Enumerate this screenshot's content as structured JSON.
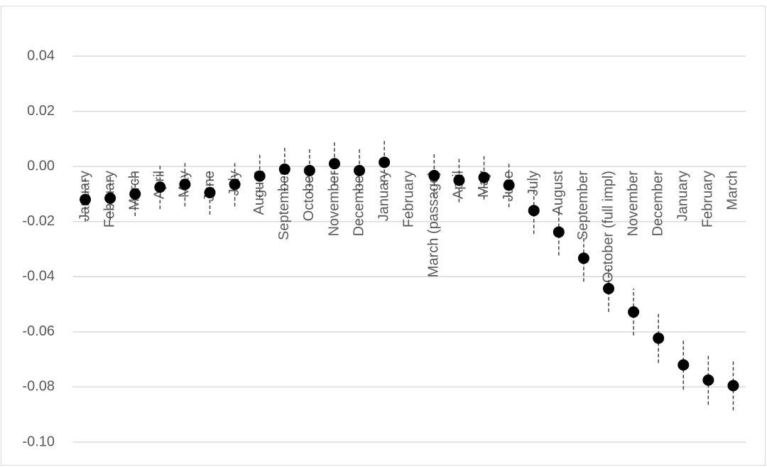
{
  "chart_data": {
    "type": "scatter",
    "categories": [
      "January",
      "February",
      "March",
      "April",
      "May",
      "June",
      "July",
      "August",
      "September",
      "October",
      "November",
      "December",
      "January",
      "February",
      "March (passage)",
      "April",
      "May",
      "June",
      "July",
      "August",
      "September",
      "October (full impl)",
      "November",
      "December",
      "January",
      "February",
      "March"
    ],
    "values": [
      -0.012,
      -0.0115,
      -0.01,
      -0.0075,
      -0.0065,
      -0.0095,
      -0.0065,
      -0.0035,
      -0.001,
      -0.0015,
      0.001,
      -0.0015,
      0.0015,
      null,
      -0.0033,
      -0.005,
      -0.004,
      -0.0068,
      -0.016,
      -0.0238,
      -0.0333,
      -0.0443,
      -0.0528,
      -0.0623,
      -0.072,
      -0.0775,
      -0.0795
    ],
    "errors": [
      0.008,
      0.008,
      0.008,
      0.008,
      0.008,
      0.008,
      0.008,
      0.008,
      0.008,
      0.008,
      0.008,
      0.008,
      0.008,
      null,
      0.008,
      0.008,
      0.008,
      0.008,
      0.0085,
      0.0085,
      0.0085,
      0.0085,
      0.0085,
      0.009,
      0.009,
      0.009,
      0.009
    ],
    "color": "#000000",
    "ylim": [
      -0.1,
      0.04
    ],
    "yticks": [
      {
        "value": -0.1,
        "label": "-0.10"
      },
      {
        "value": -0.08,
        "label": "-0.08"
      },
      {
        "value": -0.06,
        "label": "-0.06"
      },
      {
        "value": -0.04,
        "label": "-0.04"
      },
      {
        "value": -0.02,
        "label": "-0.02"
      },
      {
        "value": 0,
        "label": "0.00"
      },
      {
        "value": 0.02,
        "label": "0.02"
      },
      {
        "value": 0.04,
        "label": "0.04"
      }
    ],
    "grid": true
  }
}
